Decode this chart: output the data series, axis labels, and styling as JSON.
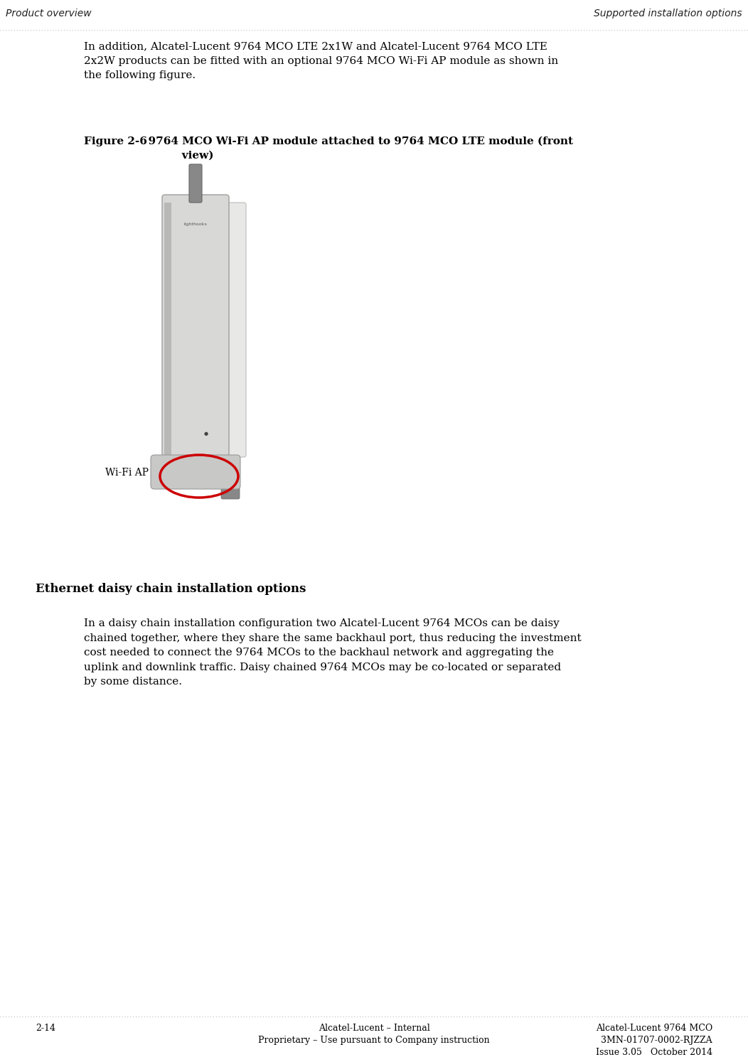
{
  "bg_color": "#ffffff",
  "header_left": "Product overview",
  "header_right": "Supported installation options",
  "header_font_size": 10,
  "dotted_line_color": "#aaaaaa",
  "body_text_1": "In addition, Alcatel-Lucent 9764 MCO LTE 2x1W and Alcatel-Lucent 9764 MCO LTE\n2x2W products can be fitted with an optional 9764 MCO Wi-Fi AP module as shown in\nthe following figure.",
  "body_font_size": 11,
  "figure_caption_bold": "Figure 2-6",
  "figure_caption_rest": "  9764 MCO Wi-Fi AP module attached to 9764 MCO LTE module (front\n           view)",
  "figure_caption_font_size": 11,
  "wifi_label": "Wi-Fi AP",
  "wifi_label_font_size": 10,
  "section_heading": "Ethernet daisy chain installation options",
  "section_heading_font_size": 12,
  "body_text_2": "In a daisy chain installation configuration two Alcatel-Lucent 9764 MCOs can be daisy\nchained together, where they share the same backhaul port, thus reducing the investment\ncost needed to connect the 9764 MCOs to the backhaul network and aggregating the\nuplink and downlink traffic. Daisy chained 9764 MCOs may be co-located or separated\nby some distance.",
  "body_font_size_2": 11,
  "footer_left_num": "2-14",
  "footer_center_line1": "Alcatel-Lucent – Internal",
  "footer_center_line2": "Proprietary – Use pursuant to Company instruction",
  "footer_right_line1": "Alcatel-Lucent 9764 MCO",
  "footer_right_line2": "3MN-01707-0002-RJZZA",
  "footer_right_line3": "Issue 3.05   October 2014",
  "footer_font_size": 9
}
